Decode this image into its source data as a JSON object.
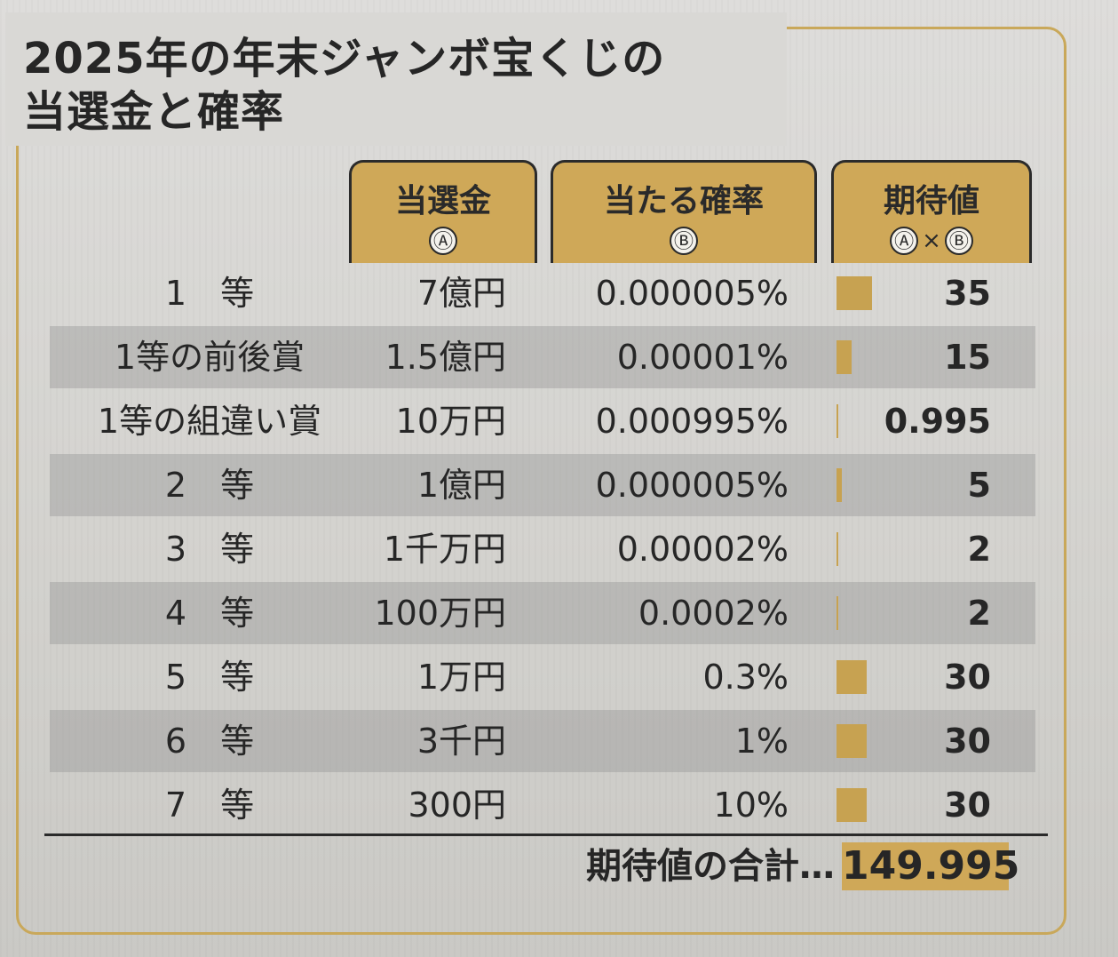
{
  "title": {
    "line1": "2025年の年末ジャンボ宝くじの",
    "line2": "当選金と確率"
  },
  "headers": {
    "prize": {
      "label": "当選金",
      "mark": "Ⓐ"
    },
    "probability": {
      "label": "当たる確率",
      "mark": "Ⓑ"
    },
    "expected": {
      "label": "期待値",
      "mark_a": "Ⓐ",
      "times": "×",
      "mark_b": "Ⓑ"
    }
  },
  "chart_data": {
    "type": "table",
    "columns": [
      "当選金",
      "当たる確率",
      "期待値"
    ],
    "bar_column": "期待値",
    "bar_color": "#c7a251",
    "header_color": "#cfa858",
    "rows": [
      {
        "name": "1　等",
        "prize": "7億円",
        "probability": "0.000005%",
        "expected_label": "35",
        "expected": 35
      },
      {
        "name": "1等の前後賞",
        "prize": "1.5億円",
        "probability": "0.00001%",
        "expected_label": "15",
        "expected": 15
      },
      {
        "name": "1等の組違い賞",
        "prize": "10万円",
        "probability": "0.000995%",
        "expected_label": "0.995",
        "expected": 0.995
      },
      {
        "name": "2　等",
        "prize": "1億円",
        "probability": "0.000005%",
        "expected_label": "5",
        "expected": 5
      },
      {
        "name": "3　等",
        "prize": "1千万円",
        "probability": "0.00002%",
        "expected_label": "2",
        "expected": 2
      },
      {
        "name": "4　等",
        "prize": "100万円",
        "probability": "0.0002%",
        "expected_label": "2",
        "expected": 2
      },
      {
        "name": "5　等",
        "prize": "1万円",
        "probability": "0.3%",
        "expected_label": "30",
        "expected": 30
      },
      {
        "name": "6　等",
        "prize": "3千円",
        "probability": "1%",
        "expected_label": "30",
        "expected": 30
      },
      {
        "name": "7　等",
        "prize": "300円",
        "probability": "10%",
        "expected_label": "30",
        "expected": 30
      }
    ],
    "total_label": "期待値の合計…",
    "total": "149.995"
  }
}
